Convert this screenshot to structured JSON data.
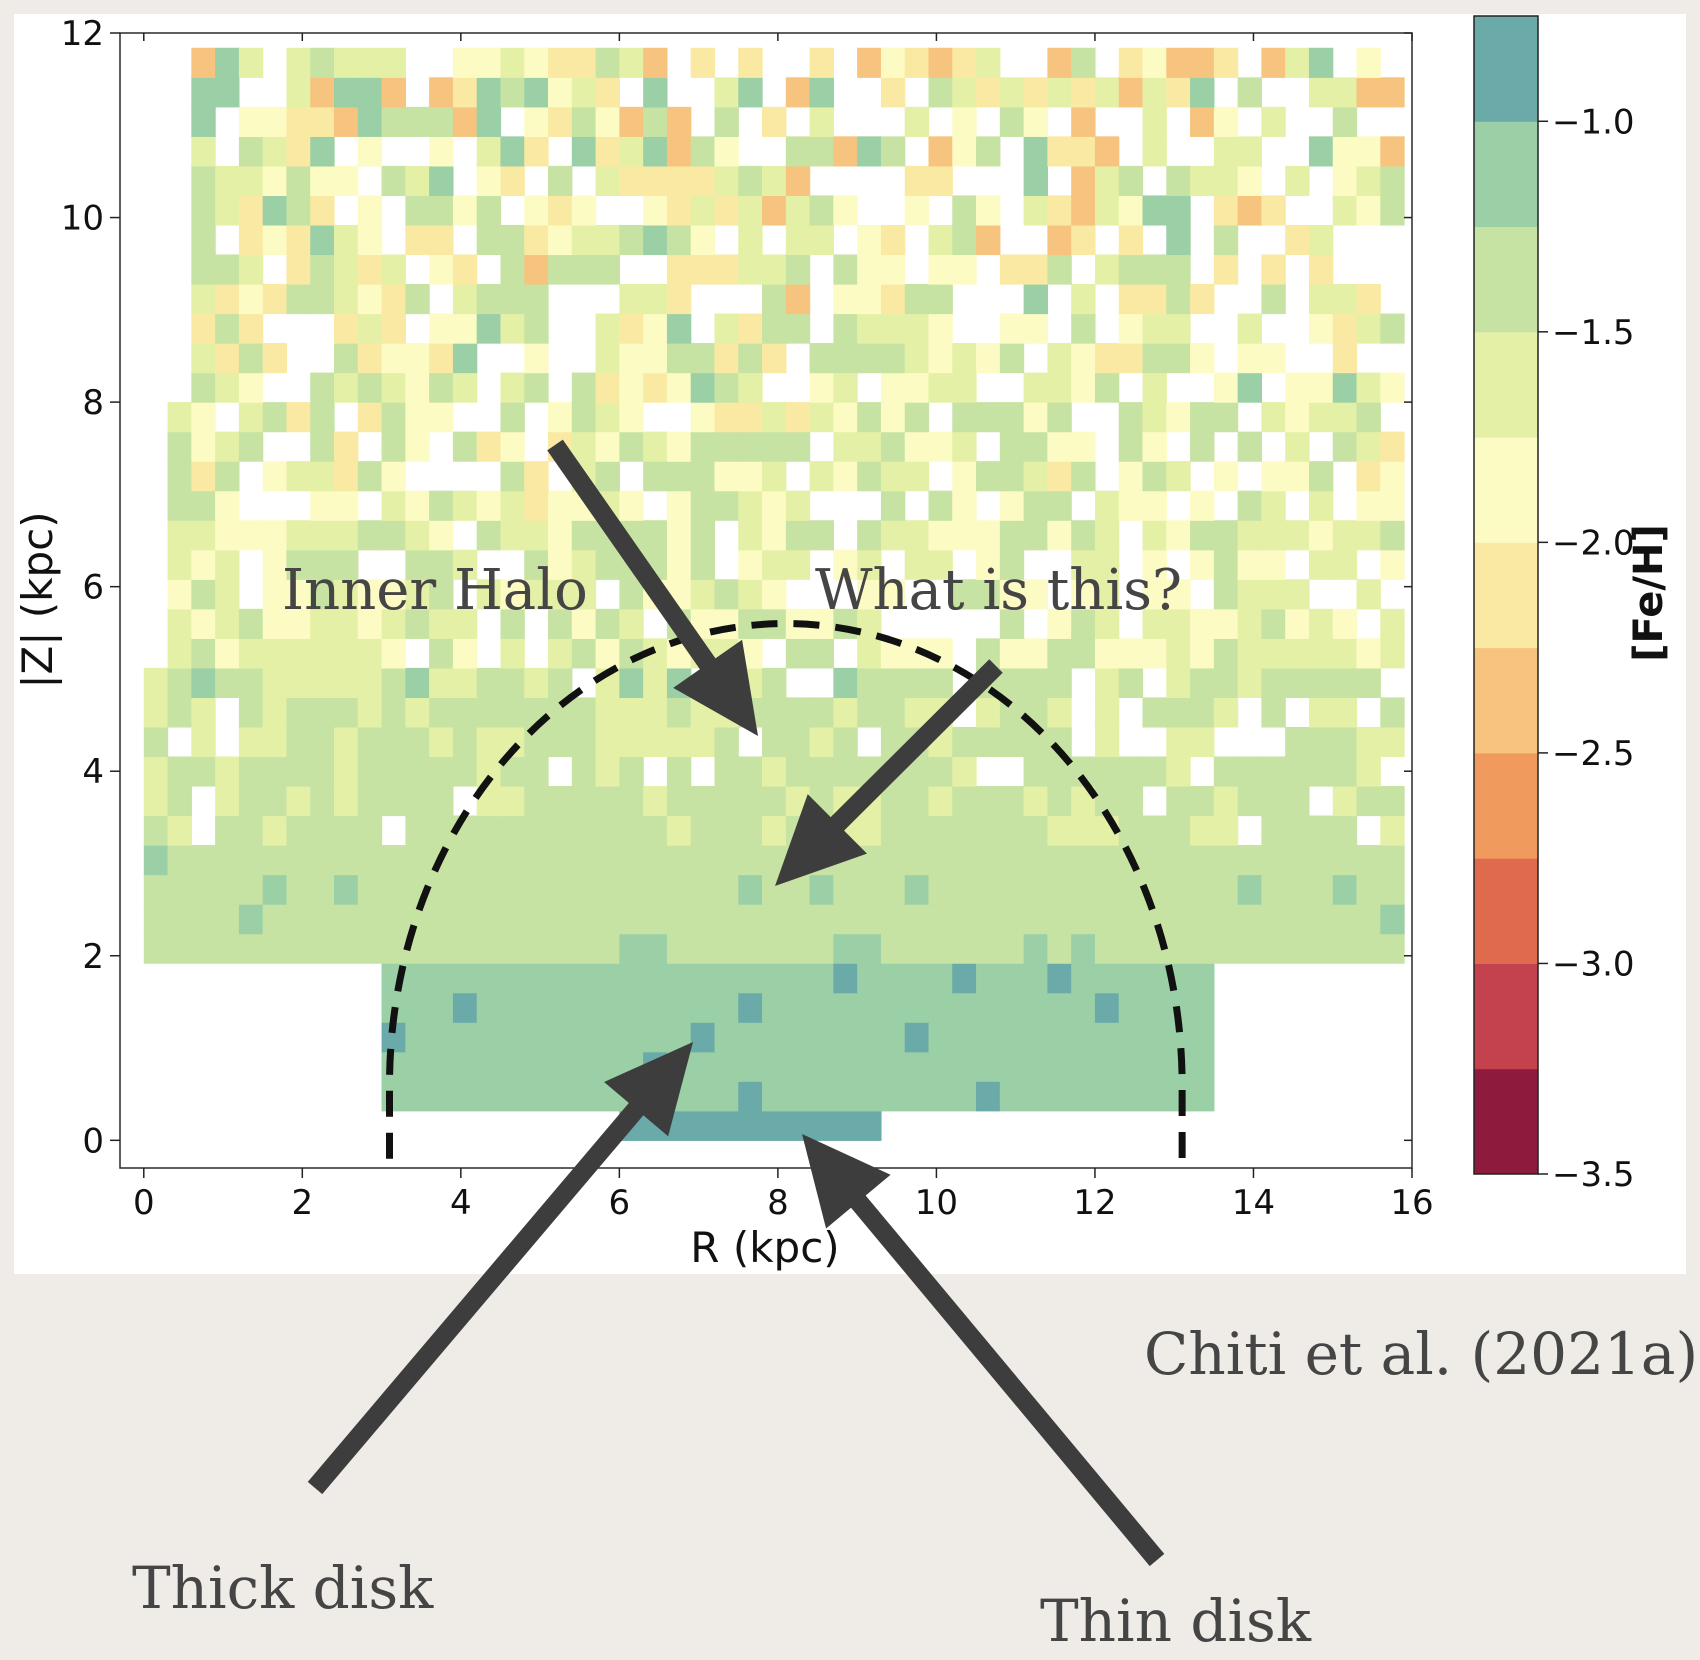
{
  "chart_data": {
    "type": "heatmap",
    "xlabel": "R (kpc)",
    "ylabel": "|Z| (kpc)",
    "xlim": [
      -0.3,
      16
    ],
    "ylim": [
      -0.3,
      12
    ],
    "x_ticks": [
      "0",
      "2",
      "4",
      "6",
      "8",
      "10",
      "12",
      "14",
      "16"
    ],
    "y_ticks": [
      "0",
      "2",
      "4",
      "6",
      "8",
      "10",
      "12"
    ],
    "x_tick_values": [
      0,
      2,
      4,
      6,
      8,
      10,
      12,
      14,
      16
    ],
    "y_tick_values": [
      0,
      2,
      4,
      6,
      8,
      10,
      12
    ],
    "bin_size_kpc": [
      0.3,
      0.32
    ],
    "value_label": "[Fe/H]",
    "colorbar": {
      "label": "[Fe/H]",
      "range": [
        -3.5,
        -0.75
      ],
      "ticks": [
        "-1.0",
        "-1.5",
        "-2.0",
        "-2.5",
        "-3.0",
        "-3.5"
      ],
      "tick_values": [
        -1.0,
        -1.5,
        -2.0,
        -2.5,
        -3.0,
        -3.5
      ],
      "levels": [
        -3.5,
        -3.25,
        -3.0,
        -2.75,
        -2.5,
        -2.25,
        -2.0,
        -1.75,
        -1.5,
        -1.25,
        -1.0,
        -0.75
      ],
      "colors": [
        "#8e1a3e",
        "#c4414e",
        "#e06a4d",
        "#f09a5e",
        "#f6c47e",
        "#fae9a3",
        "#fdfbc4",
        "#e5f0a7",
        "#c6e3a3",
        "#9bcfa6",
        "#6aaaa9",
        "#4b7bb8"
      ],
      "top_color": "#5d54a4"
    },
    "regions": [
      {
        "z_range": [
          0,
          0.3
        ],
        "r_range": [
          6.0,
          9.3
        ],
        "feh": -0.85
      },
      {
        "z_range": [
          0.3,
          1.9
        ],
        "r_range": [
          3.1,
          13.5
        ],
        "feh": -1.05
      },
      {
        "z_range": [
          1.9,
          3.3
        ],
        "r_range": [
          0,
          16
        ],
        "feh": -1.3
      },
      {
        "z_range": [
          3.3,
          5.2
        ],
        "r_range": [
          0,
          16
        ],
        "feh": -1.45
      },
      {
        "z_range": [
          5.2,
          9
        ],
        "r_range": [
          0.3,
          16
        ],
        "feh": -1.65
      },
      {
        "z_range": [
          9,
          12
        ],
        "r_range": [
          0.7,
          16
        ],
        "feh": -1.75
      }
    ],
    "annotation_curve": {
      "type": "semicircle",
      "center_r": 8.1,
      "radius_r": 5,
      "peak_z": 5
    }
  },
  "annotations": {
    "inner_halo": "Inner Halo",
    "what_is_this": "What is this?",
    "thick_disk": "Thick disk",
    "thin_disk": "Thin disk",
    "citation": "Chiti et al. (2021a)"
  }
}
